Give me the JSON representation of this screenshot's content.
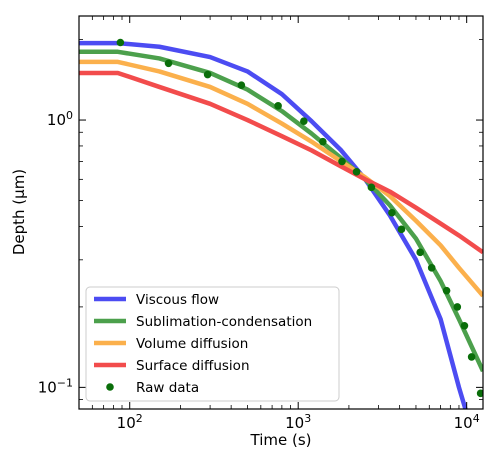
{
  "chart_data": {
    "type": "line",
    "title": "",
    "xlabel": "Time (s)",
    "ylabel": "Depth (μm)",
    "xscale": "log",
    "yscale": "log",
    "xlim": [
      50,
      12500
    ],
    "ylim": [
      0.083,
      2.45
    ],
    "grid": false,
    "legend_position": "lower-left",
    "x_ticks": [
      {
        "value": 100,
        "base": "10",
        "exp": "2"
      },
      {
        "value": 1000,
        "base": "10",
        "exp": "3"
      },
      {
        "value": 10000,
        "base": "10",
        "exp": "4"
      }
    ],
    "y_ticks": [
      {
        "value": 0.1,
        "base": "10",
        "exp": "−1"
      },
      {
        "value": 1.0,
        "label": "10",
        "exp": "0"
      }
    ],
    "series": [
      {
        "name": "Viscous flow",
        "kind": "line",
        "color": "#4c4cf2",
        "x": [
          50,
          85,
          150,
          300,
          500,
          800,
          1200,
          1800,
          2500,
          3500,
          5000,
          7000,
          9000,
          12500
        ],
        "y": [
          1.94,
          1.94,
          1.88,
          1.72,
          1.52,
          1.25,
          0.99,
          0.77,
          0.6,
          0.44,
          0.3,
          0.18,
          0.1,
          0.05
        ]
      },
      {
        "name": "Sublimation-condensation",
        "kind": "line",
        "color": "#4ca04c",
        "x": [
          50,
          85,
          150,
          300,
          500,
          800,
          1200,
          1800,
          2500,
          3500,
          5000,
          7000,
          9000,
          12500
        ],
        "y": [
          1.8,
          1.8,
          1.7,
          1.5,
          1.3,
          1.08,
          0.89,
          0.72,
          0.6,
          0.48,
          0.36,
          0.25,
          0.18,
          0.115
        ]
      },
      {
        "name": "Volume diffusion",
        "kind": "line",
        "color": "#fbb04c",
        "x": [
          50,
          85,
          150,
          300,
          500,
          800,
          1200,
          1800,
          2500,
          3500,
          5000,
          7000,
          9000,
          12500
        ],
        "y": [
          1.65,
          1.65,
          1.52,
          1.33,
          1.15,
          0.97,
          0.83,
          0.7,
          0.61,
          0.52,
          0.42,
          0.34,
          0.28,
          0.22
        ]
      },
      {
        "name": "Surface diffusion",
        "kind": "line",
        "color": "#f24c4c",
        "x": [
          50,
          85,
          150,
          300,
          500,
          800,
          1200,
          1800,
          2500,
          3500,
          5000,
          7000,
          9000,
          12500
        ],
        "y": [
          1.5,
          1.5,
          1.33,
          1.15,
          1.0,
          0.87,
          0.77,
          0.67,
          0.6,
          0.54,
          0.47,
          0.41,
          0.37,
          0.32
        ]
      },
      {
        "name": "Raw data",
        "kind": "scatter",
        "color": "#0a6e0a",
        "x": [
          88,
          170,
          290,
          460,
          760,
          1080,
          1400,
          1820,
          2220,
          2720,
          3600,
          4100,
          5300,
          6200,
          7600,
          8800,
          9700,
          10700,
          12100
        ],
        "y": [
          1.95,
          1.63,
          1.48,
          1.35,
          1.13,
          0.99,
          0.83,
          0.7,
          0.64,
          0.56,
          0.45,
          0.39,
          0.32,
          0.28,
          0.23,
          0.2,
          0.17,
          0.13,
          0.095
        ]
      }
    ]
  }
}
